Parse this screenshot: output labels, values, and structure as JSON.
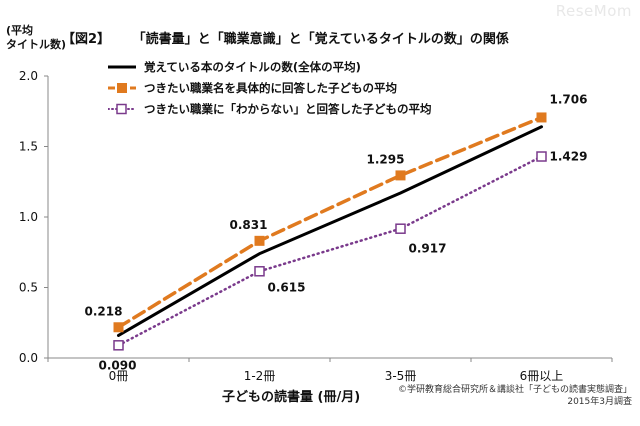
{
  "header": {
    "watermark": "ReseMom",
    "ylabel_line1": "(平均",
    "ylabel_line2": "タイトル数)",
    "figure_label": "【図2】",
    "title": "「読書量」と「職業意識」と「覚えているタイトルの数」の関係"
  },
  "footer": {
    "xlabel": "子どもの読書量 (冊/月)",
    "credit_line1": "©学研教育総合研究所＆講談社「子どもの読書実態調査」",
    "credit_line2": "2015年3月調査"
  },
  "colors": {
    "overall": "#000000",
    "specific": "#e07a1f",
    "unknown": "#7a3a8c",
    "axis": "#888888"
  },
  "chart_data": {
    "type": "line",
    "categories": [
      "0冊",
      "1-2冊",
      "3-5冊",
      "6冊以上"
    ],
    "ylim": [
      0,
      2.0
    ],
    "yticks": [
      "0.0",
      "0.5",
      "1.0",
      "1.5",
      "2.0"
    ],
    "grid": false,
    "legend_position": "top-left",
    "series": [
      {
        "name": "覚えている本のタイトルの数(全体の平均)",
        "values": [
          0.16,
          0.74,
          1.17,
          1.64
        ],
        "labels": []
      },
      {
        "name": "つきたい職業名を具体的に回答した子どもの平均",
        "values": [
          0.218,
          0.831,
          1.295,
          1.706
        ],
        "labels": [
          "0.218",
          "0.831",
          "1.295",
          "1.706"
        ]
      },
      {
        "name": "つきたい職業に「わからない」と回答した子どもの平均",
        "values": [
          0.09,
          0.615,
          0.917,
          1.429
        ],
        "labels": [
          "0.090",
          "0.615",
          "0.917",
          "1.429"
        ]
      }
    ]
  }
}
